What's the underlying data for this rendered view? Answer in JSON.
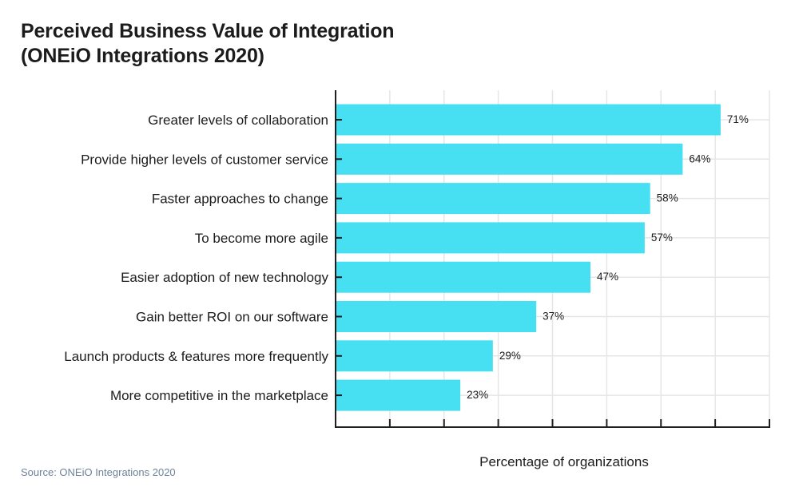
{
  "chart_data": {
    "type": "bar",
    "orientation": "horizontal",
    "title_line1": "Perceived Business Value of Integration",
    "title_line2": "(ONEiO Integrations 2020)",
    "xlabel": "Percentage of organizations",
    "ylabel": "",
    "categories": [
      "Greater levels of collaboration",
      "Provide higher levels of customer service",
      "Faster approaches to change",
      "To become more agile",
      "Easier adoption of new technology",
      "Gain better ROI on our software",
      "Launch products & features more frequently",
      "More competitive in the marketplace"
    ],
    "values": [
      71,
      64,
      58,
      57,
      47,
      37,
      29,
      23
    ],
    "value_labels": [
      "71%",
      "64%",
      "58%",
      "57%",
      "47%",
      "37%",
      "29%",
      "23%"
    ],
    "xlim": [
      0,
      80
    ],
    "x_tick_step": 10,
    "grid": true,
    "bar_color": "#47e0f2",
    "grid_color": "#e6e6e6",
    "axis_color": "#1f1f1f"
  },
  "source": "Source: ONEiO Integrations 2020"
}
